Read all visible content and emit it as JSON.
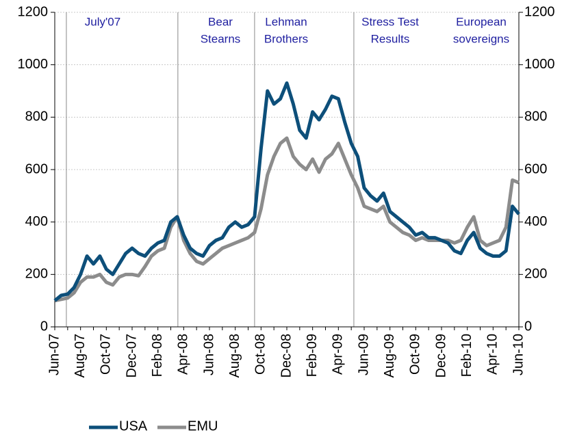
{
  "chart_data": {
    "type": "line",
    "x": [
      "Jun-07",
      null,
      null,
      null,
      "Aug-07",
      null,
      null,
      null,
      "Oct-07",
      null,
      null,
      null,
      "Dec-07",
      null,
      null,
      null,
      "Feb-08",
      null,
      null,
      null,
      "Apr-08",
      null,
      null,
      null,
      "Jun-08",
      null,
      null,
      null,
      "Aug-08",
      null,
      null,
      null,
      "Oct-08",
      null,
      null,
      null,
      "Dec-08",
      null,
      null,
      null,
      "Feb-09",
      null,
      null,
      null,
      "Apr-09",
      null,
      null,
      null,
      "Jun-09",
      null,
      null,
      null,
      "Aug-09",
      null,
      null,
      null,
      "Oct-09",
      null,
      null,
      null,
      "Dec-09",
      null,
      null,
      null,
      "Feb-10",
      null,
      null,
      null,
      "Apr-10",
      null,
      null,
      null,
      "Jun-10"
    ],
    "series": [
      {
        "name": "USA",
        "color": "#0d4f7a",
        "values": [
          100,
          120,
          125,
          150,
          200,
          270,
          240,
          270,
          220,
          200,
          240,
          280,
          300,
          280,
          270,
          300,
          320,
          330,
          400,
          420,
          350,
          300,
          280,
          270,
          310,
          330,
          340,
          380,
          400,
          380,
          390,
          420,
          680,
          900,
          850,
          870,
          930,
          850,
          750,
          720,
          820,
          790,
          830,
          880,
          870,
          780,
          700,
          650,
          530,
          500,
          480,
          510,
          440,
          420,
          400,
          380,
          350,
          360,
          340,
          340,
          330,
          320,
          290,
          280,
          330,
          360,
          300,
          280,
          270,
          270,
          290,
          460,
          430
        ]
      },
      {
        "name": "EMU",
        "color": "#8c8c8c",
        "axis": "y2",
        "values": [
          100,
          105,
          110,
          130,
          170,
          190,
          190,
          200,
          170,
          160,
          190,
          200,
          200,
          195,
          230,
          270,
          290,
          300,
          380,
          420,
          330,
          280,
          250,
          240,
          260,
          280,
          300,
          310,
          320,
          330,
          340,
          360,
          450,
          580,
          650,
          700,
          720,
          650,
          620,
          600,
          640,
          590,
          640,
          660,
          700,
          640,
          580,
          530,
          460,
          450,
          440,
          460,
          400,
          380,
          360,
          350,
          330,
          340,
          330,
          330,
          330,
          330,
          320,
          330,
          380,
          420,
          330,
          310,
          320,
          330,
          380,
          560,
          550
        ]
      }
    ],
    "ylim": [
      0,
      1200
    ],
    "yticks": [
      0,
      200,
      400,
      600,
      800,
      1000,
      1200
    ],
    "y2lim": [
      0,
      1200
    ],
    "y2ticks": [
      0,
      200,
      400,
      600,
      800,
      1000,
      1200
    ],
    "grid": true,
    "annotations": [
      [
        "July'07"
      ],
      [
        "Bear",
        "Stearns"
      ],
      [
        "Lehman",
        "Brothers"
      ],
      [
        "Stress Test",
        "Results"
      ],
      [
        "European",
        "sovereigns"
      ]
    ]
  }
}
